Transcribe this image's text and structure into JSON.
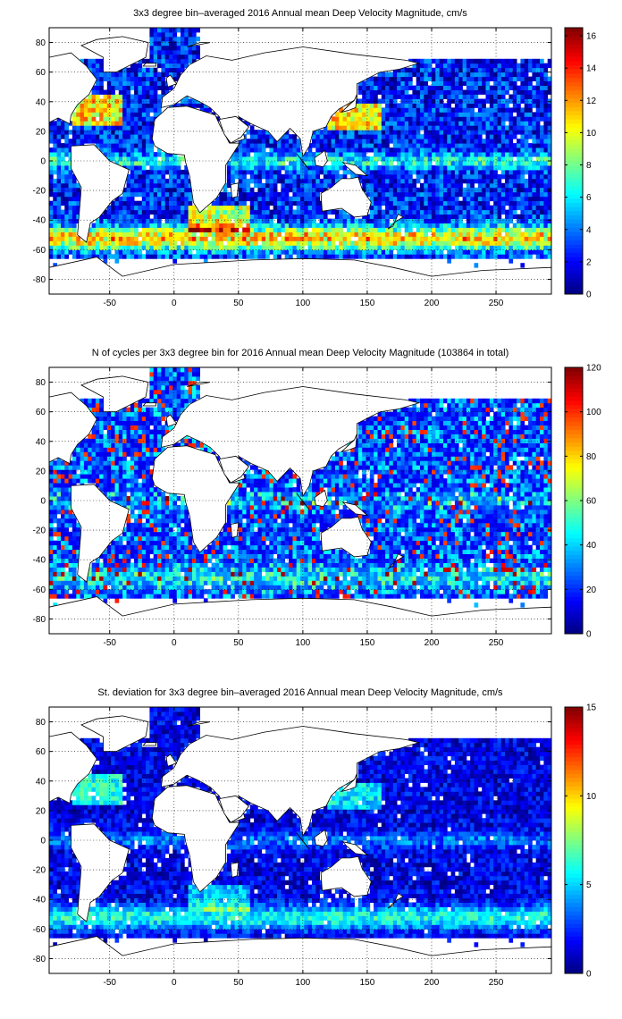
{
  "figure": {
    "panels": [
      {
        "title": "3x3 degree bin–averaged 2016 Annual mean Deep Velocity Magnitude, cm/s",
        "colorbar": {
          "min": 0,
          "max": 16.5,
          "ticks": [
            "0",
            "2",
            "4",
            "6",
            "8",
            "10",
            "12",
            "14",
            "16"
          ],
          "tick_values": [
            0,
            2,
            4,
            6,
            8,
            10,
            12,
            14,
            16
          ]
        },
        "field": "mean"
      },
      {
        "title": "N of cycles per 3x3 degree bin for 2016 Annual mean Deep Velocity Magnitude (103864 in total)",
        "colorbar": {
          "min": 0,
          "max": 120,
          "ticks": [
            "0",
            "20",
            "40",
            "60",
            "80",
            "100",
            "120"
          ],
          "tick_values": [
            0,
            20,
            40,
            60,
            80,
            100,
            120
          ]
        },
        "field": "count"
      },
      {
        "title": "St. deviation for 3x3 degree bin–averaged 2016 Annual mean Deep Velocity Magnitude, cm/s",
        "colorbar": {
          "min": 0,
          "max": 15,
          "ticks": [
            "0",
            "5",
            "10",
            "15"
          ],
          "tick_values": [
            0,
            5,
            10,
            15
          ]
        },
        "field": "std"
      }
    ],
    "x_axis": {
      "ticks": [
        "-50",
        "0",
        "50",
        "100",
        "150",
        "200",
        "250"
      ],
      "tick_values": [
        -50,
        0,
        50,
        100,
        150,
        200,
        250
      ],
      "range": [
        -97,
        293
      ]
    },
    "y_axis": {
      "ticks": [
        "80",
        "60",
        "40",
        "20",
        "0",
        "-20",
        "-40",
        "-60",
        "-80"
      ],
      "tick_values": [
        80,
        60,
        40,
        20,
        0,
        -20,
        -40,
        -60,
        -80
      ],
      "range": [
        -90,
        90
      ]
    },
    "colormap": "jet",
    "grid": "dotted"
  }
}
